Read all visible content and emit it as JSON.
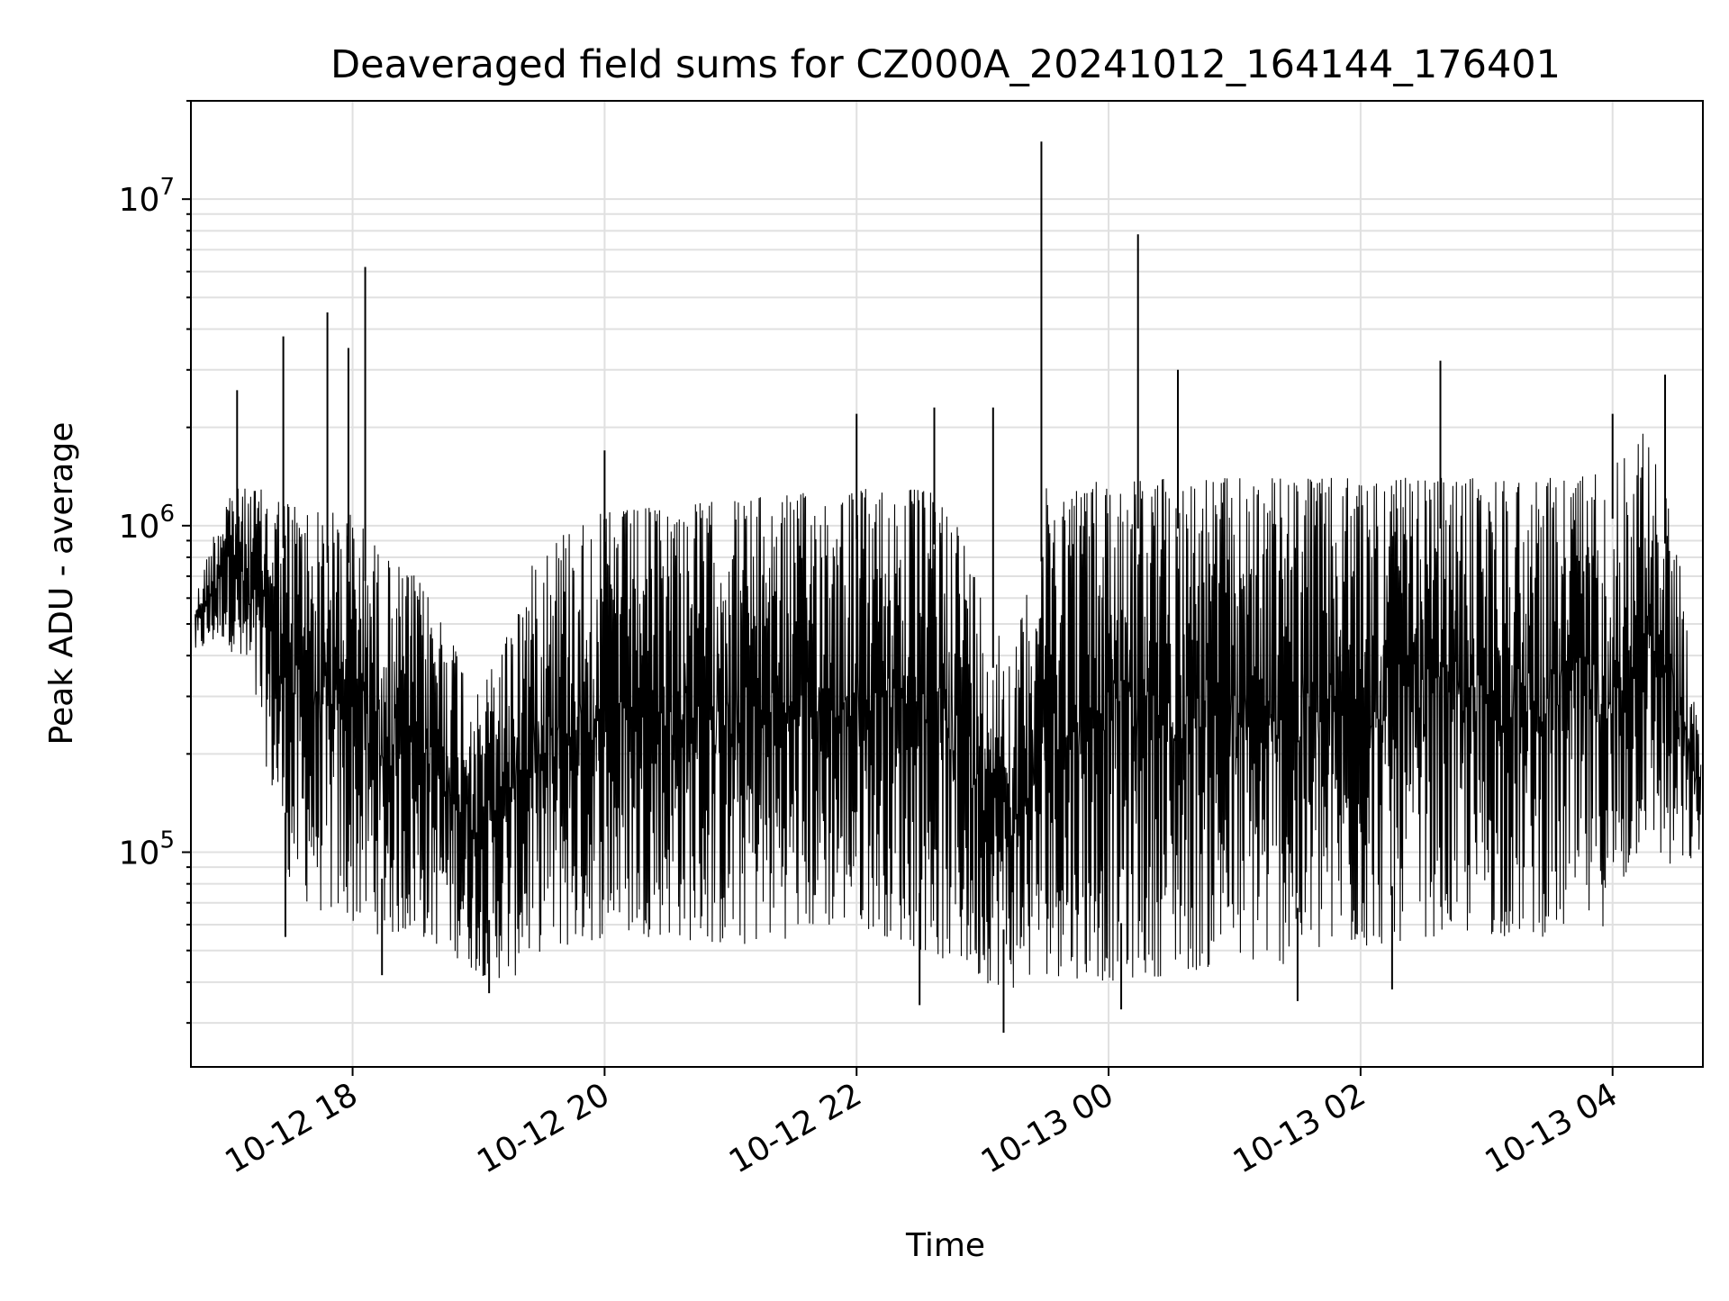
{
  "chart_data": {
    "type": "line",
    "title": "Deaveraged field sums for CZ000A_20241012_164144_176401",
    "xlabel": "Time",
    "ylabel": "Peak ADU - average",
    "yscale": "log",
    "ylim": [
      22000,
      20000000
    ],
    "xlim": [
      "2024-10-12 16:43",
      "2024-10-13 04:43"
    ],
    "grid": true,
    "line_color": "#000000",
    "x_ticks": [
      {
        "label": "10-12 18",
        "value": "2024-10-12 18:00"
      },
      {
        "label": "10-12 20",
        "value": "2024-10-12 20:00"
      },
      {
        "label": "10-12 22",
        "value": "2024-10-12 22:00"
      },
      {
        "label": "10-13 00",
        "value": "2024-10-13 00:00"
      },
      {
        "label": "10-13 02",
        "value": "2024-10-13 02:00"
      },
      {
        "label": "10-13 04",
        "value": "2024-10-13 04:00"
      }
    ],
    "y_ticks": [
      {
        "base": "10",
        "exp": "5",
        "value": 100000
      },
      {
        "base": "10",
        "exp": "6",
        "value": 1000000
      },
      {
        "base": "10",
        "exp": "7",
        "value": 10000000
      }
    ],
    "series": [
      {
        "envelope": [
          {
            "x": "2024-10-12 16:45",
            "upper": 600000,
            "lower": 400000
          },
          {
            "x": "2024-10-12 17:00",
            "upper": 1300000,
            "lower": 450000
          },
          {
            "x": "2024-10-12 17:15",
            "upper": 1300000,
            "lower": 250000
          },
          {
            "x": "2024-10-12 17:30",
            "upper": 1200000,
            "lower": 75000
          },
          {
            "x": "2024-10-12 17:45",
            "upper": 1100000,
            "lower": 65000
          },
          {
            "x": "2024-10-12 18:00",
            "upper": 1100000,
            "lower": 60000
          },
          {
            "x": "2024-10-12 18:15",
            "upper": 800000,
            "lower": 55000
          },
          {
            "x": "2024-10-12 18:30",
            "upper": 700000,
            "lower": 55000
          },
          {
            "x": "2024-10-12 18:45",
            "upper": 500000,
            "lower": 50000
          },
          {
            "x": "2024-10-12 19:00",
            "upper": 300000,
            "lower": 42000
          },
          {
            "x": "2024-10-12 19:15",
            "upper": 500000,
            "lower": 40000
          },
          {
            "x": "2024-10-12 19:30",
            "upper": 900000,
            "lower": 50000
          },
          {
            "x": "2024-10-12 19:45",
            "upper": 1000000,
            "lower": 50000
          },
          {
            "x": "2024-10-12 20:00",
            "upper": 1100000,
            "lower": 55000
          },
          {
            "x": "2024-10-12 20:30",
            "upper": 1150000,
            "lower": 55000
          },
          {
            "x": "2024-10-12 21:00",
            "upper": 1200000,
            "lower": 50000
          },
          {
            "x": "2024-10-12 21:30",
            "upper": 1250000,
            "lower": 55000
          },
          {
            "x": "2024-10-12 22:00",
            "upper": 1300000,
            "lower": 60000
          },
          {
            "x": "2024-10-12 22:30",
            "upper": 1300000,
            "lower": 50000
          },
          {
            "x": "2024-10-12 22:45",
            "upper": 1200000,
            "lower": 45000
          },
          {
            "x": "2024-10-12 23:00",
            "upper": 600000,
            "lower": 40000
          },
          {
            "x": "2024-10-12 23:15",
            "upper": 400000,
            "lower": 38000
          },
          {
            "x": "2024-10-12 23:30",
            "upper": 1300000,
            "lower": 42000
          },
          {
            "x": "2024-10-13 00:00",
            "upper": 1400000,
            "lower": 40000
          },
          {
            "x": "2024-10-13 00:30",
            "upper": 1400000,
            "lower": 42000
          },
          {
            "x": "2024-10-13 01:00",
            "upper": 1400000,
            "lower": 45000
          },
          {
            "x": "2024-10-13 01:30",
            "upper": 1400000,
            "lower": 45000
          },
          {
            "x": "2024-10-13 02:00",
            "upper": 1400000,
            "lower": 50000
          },
          {
            "x": "2024-10-13 02:30",
            "upper": 1400000,
            "lower": 55000
          },
          {
            "x": "2024-10-13 03:00",
            "upper": 1400000,
            "lower": 55000
          },
          {
            "x": "2024-10-13 03:30",
            "upper": 1400000,
            "lower": 55000
          },
          {
            "x": "2024-10-13 04:00",
            "upper": 1500000,
            "lower": 60000
          },
          {
            "x": "2024-10-13 04:15",
            "upper": 2000000,
            "lower": 110000
          },
          {
            "x": "2024-10-13 04:30",
            "upper": 1000000,
            "lower": 80000
          },
          {
            "x": "2024-10-13 04:42",
            "upper": 200000,
            "lower": 100000
          }
        ],
        "spikes": [
          {
            "x": "2024-10-12 17:05",
            "y": 2600000
          },
          {
            "x": "2024-10-12 17:27",
            "y": 3800000
          },
          {
            "x": "2024-10-12 17:48",
            "y": 4500000
          },
          {
            "x": "2024-10-12 17:58",
            "y": 3500000
          },
          {
            "x": "2024-10-12 18:06",
            "y": 6200000
          },
          {
            "x": "2024-10-12 20:00",
            "y": 1700000
          },
          {
            "x": "2024-10-12 22:00",
            "y": 2200000
          },
          {
            "x": "2024-10-12 22:37",
            "y": 2300000
          },
          {
            "x": "2024-10-12 23:05",
            "y": 2300000
          },
          {
            "x": "2024-10-12 23:28",
            "y": 15000000
          },
          {
            "x": "2024-10-13 00:14",
            "y": 7800000
          },
          {
            "x": "2024-10-13 00:33",
            "y": 3000000
          },
          {
            "x": "2024-10-13 02:38",
            "y": 3200000
          },
          {
            "x": "2024-10-13 04:00",
            "y": 2200000
          },
          {
            "x": "2024-10-13 04:25",
            "y": 2900000
          }
        ],
        "dips": [
          {
            "x": "2024-10-12 17:28",
            "y": 55000
          },
          {
            "x": "2024-10-12 18:14",
            "y": 42000
          },
          {
            "x": "2024-10-12 19:05",
            "y": 37000
          },
          {
            "x": "2024-10-12 22:30",
            "y": 34000
          },
          {
            "x": "2024-10-12 23:10",
            "y": 28000
          },
          {
            "x": "2024-10-13 00:06",
            "y": 33000
          },
          {
            "x": "2024-10-13 01:30",
            "y": 35000
          },
          {
            "x": "2024-10-13 02:15",
            "y": 38000
          }
        ]
      }
    ]
  }
}
